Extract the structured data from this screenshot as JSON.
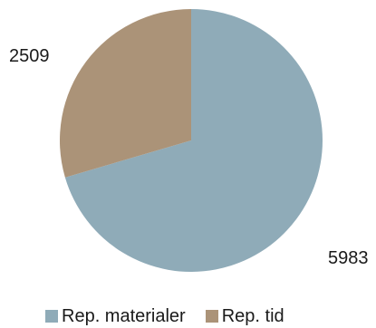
{
  "chart_data": {
    "type": "pie",
    "title": "",
    "slices": [
      {
        "name": "Rep. materialer",
        "value": 5983,
        "label": "5983",
        "color": "#8fabb8"
      },
      {
        "name": "Rep. tid",
        "value": 2509,
        "label": "2509",
        "color": "#ab9378"
      }
    ],
    "legend": {
      "placement": "bottom",
      "items": [
        {
          "name": "Rep. materialer",
          "color": "#8fabb8"
        },
        {
          "name": "Rep. tid",
          "color": "#ab9378"
        }
      ]
    }
  }
}
